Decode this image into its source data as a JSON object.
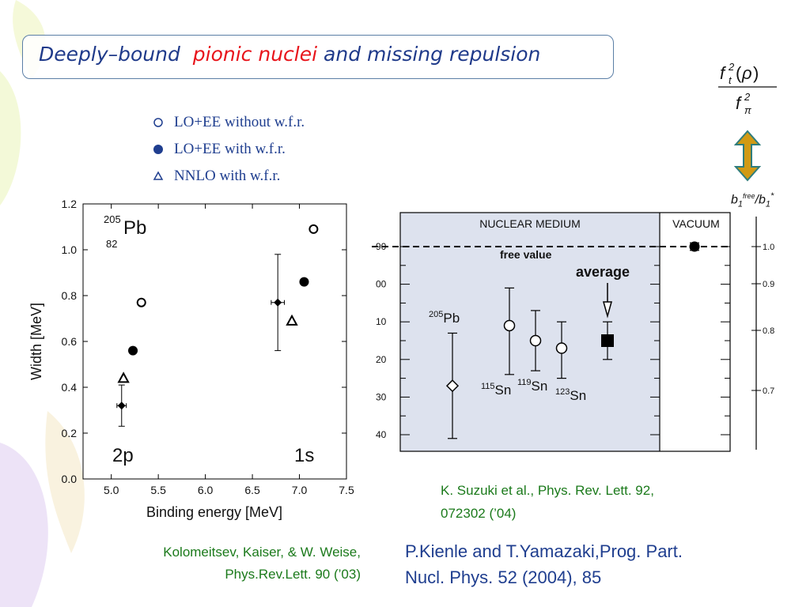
{
  "slide": {
    "title_part1": "Deeply–bound",
    "title_part2": "pionic nuclei",
    "title_part3": "and missing repulsion",
    "accent_color": "#e8141b",
    "title_color": "#1f3a8a"
  },
  "legend": [
    {
      "marker": "open-circle",
      "label": "LO+EE without w.f.r."
    },
    {
      "marker": "filled-circle",
      "label": "LO+EE with w.f.r."
    },
    {
      "marker": "open-triangle",
      "label": "NNLO with w.f.r."
    }
  ],
  "formula": {
    "numerator": "f_t^2(ρ)",
    "denominator": "f_π^2",
    "b_ratio_label": "b1free/b1*"
  },
  "chart_data": [
    {
      "type": "scatter",
      "xlabel": "Binding energy [MeV]",
      "ylabel": "Width [MeV]",
      "xlim": [
        4.7,
        7.5
      ],
      "ylim": [
        0.0,
        1.2
      ],
      "x_ticks": [
        "5.0",
        "5.5",
        "6.0",
        "6.5",
        "7.0",
        "7.5"
      ],
      "y_ticks": [
        "0.0",
        "0.2",
        "0.4",
        "0.6",
        "0.8",
        "1.0",
        "1.2"
      ],
      "nucleus": {
        "mass": "205",
        "symbol": "Pb",
        "charge": "82"
      },
      "state_labels": [
        "2p",
        "1s"
      ],
      "series": [
        {
          "marker": "open-circle",
          "points": [
            [
              5.32,
              0.77
            ],
            [
              7.15,
              1.09
            ]
          ]
        },
        {
          "marker": "filled-circle",
          "points": [
            [
              5.23,
              0.56
            ],
            [
              7.05,
              0.86
            ]
          ]
        },
        {
          "marker": "open-triangle",
          "points": [
            [
              5.13,
              0.44
            ],
            [
              6.92,
              0.69
            ]
          ]
        },
        {
          "marker": "filled-diamond",
          "points": [
            {
              "x": 5.11,
              "y": 0.32,
              "xerr": 0.05,
              "ylow": 0.23,
              "yhigh": 0.41
            },
            {
              "x": 6.77,
              "y": 0.77,
              "xerr": 0.07,
              "ylow": 0.56,
              "yhigh": 0.98
            }
          ]
        }
      ]
    },
    {
      "type": "scatter",
      "region_labels": [
        "NUCLEAR MEDIUM",
        "VACUUM"
      ],
      "reference_line_label": "free value",
      "average_label": "average",
      "left_ticks": [
        "90",
        "00",
        "10",
        "20",
        "30",
        "40"
      ],
      "right_ticks": [
        "1.0",
        "0.9",
        "0.8",
        "0.7"
      ],
      "points": [
        {
          "label": "205Pb",
          "marker": "open-diamond",
          "y": 27,
          "ylow": 41,
          "yhigh": 13
        },
        {
          "label": "115Sn",
          "marker": "open-circle",
          "y": 11,
          "ylow": 24,
          "yhigh": 1
        },
        {
          "label": "119Sn",
          "marker": "open-circle",
          "y": 15,
          "ylow": 23,
          "yhigh": 7
        },
        {
          "label": "123Sn",
          "marker": "open-circle",
          "y": 17,
          "ylow": 25,
          "yhigh": 10
        },
        {
          "label": "average",
          "marker": "filled-square",
          "y": 15,
          "ylow": 20,
          "yhigh": 10
        },
        {
          "label": "vacuum",
          "marker": "filled-circle",
          "y": -10,
          "ylow": -9,
          "yhigh": -11
        }
      ],
      "free_value_y": -10
    }
  ],
  "citations": {
    "kkw_line1": "Kolomeitsev, Kaiser, & W. Weise,",
    "kkw_line2": "Phys.Rev.Lett. 90 (’03)",
    "suzuki_line1": "K. Suzuki et al., Phys. Rev. Lett. 92,",
    "suzuki_line2": "072302 (’04)",
    "kienle_line1": "P.Kienle and T.Yamazaki,Prog. Part.",
    "kienle_line2": "Nucl. Phys. 52 (2004), 85"
  }
}
